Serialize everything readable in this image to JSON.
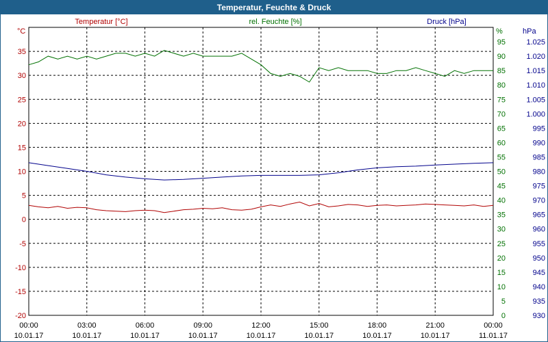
{
  "window": {
    "title": "Temperatur, Feuchte & Druck"
  },
  "chart_data": {
    "type": "line",
    "title": "Temperatur, Feuchte & Druck",
    "grid": true,
    "colors": {
      "temperature": "#b00000",
      "humidity": "#007000",
      "pressure": "#00008b",
      "titlebar": "#1f5f8b"
    },
    "x": {
      "tick_times": [
        "00:00",
        "03:00",
        "06:00",
        "09:00",
        "12:00",
        "15:00",
        "18:00",
        "21:00",
        "00:00"
      ],
      "tick_dates": [
        "10.01.17",
        "10.01.17",
        "10.01.17",
        "10.01.17",
        "10.01.17",
        "10.01.17",
        "10.01.17",
        "10.01.17",
        "11.01.17"
      ],
      "range_hours": [
        0,
        24
      ]
    },
    "axes": {
      "temperature": {
        "label": "Temperatur [°C]",
        "unit": "°C",
        "range": [
          -20,
          40
        ],
        "ticks": [
          35,
          30,
          25,
          20,
          15,
          10,
          5,
          0,
          -5,
          -10,
          -15,
          -20
        ],
        "tick_labels": [
          "35",
          "30",
          "25",
          "20",
          "15",
          "10",
          "5",
          "0",
          "-5",
          "-10",
          "-15",
          "-20"
        ]
      },
      "humidity": {
        "label": "rel. Feuchte [%]",
        "unit": "%",
        "range": [
          0,
          100
        ],
        "ticks": [
          95,
          90,
          85,
          80,
          75,
          70,
          65,
          60,
          55,
          50,
          45,
          40,
          35,
          30,
          25,
          20,
          15,
          10,
          5,
          0
        ],
        "tick_labels": [
          "95",
          "90",
          "85",
          "80",
          "75",
          "70",
          "65",
          "60",
          "55",
          "50",
          "45",
          "40",
          "35",
          "30",
          "25",
          "20",
          "15",
          "10",
          "5",
          "0"
        ]
      },
      "pressure": {
        "label": "Druck [hPa]",
        "unit": "hPa",
        "range": [
          930,
          1030
        ],
        "ticks": [
          1025,
          1020,
          1015,
          1010,
          1005,
          1000,
          995,
          990,
          985,
          980,
          975,
          970,
          965,
          960,
          955,
          950,
          945,
          940,
          935,
          930
        ],
        "tick_labels": [
          "1.025",
          "1.020",
          "1.015",
          "1.010",
          "1.005",
          "1.000",
          "995",
          "990",
          "985",
          "980",
          "975",
          "970",
          "965",
          "960",
          "955",
          "950",
          "945",
          "940",
          "935",
          "930"
        ]
      }
    },
    "series": [
      {
        "name": "Temperatur [°C]",
        "axis": "temperature",
        "color": "#b00000",
        "x": [
          0,
          0.5,
          1,
          1.5,
          2,
          2.5,
          3,
          3.5,
          4,
          4.5,
          5,
          5.5,
          6,
          6.5,
          7,
          7.5,
          8,
          8.5,
          9,
          9.5,
          10,
          10.5,
          11,
          11.5,
          12,
          12.5,
          13,
          13.5,
          14,
          14.5,
          15,
          15.5,
          16,
          16.5,
          17,
          17.5,
          18,
          18.5,
          19,
          19.5,
          20,
          20.5,
          21,
          21.5,
          22,
          22.5,
          23,
          23.5,
          24
        ],
        "y": [
          2.9,
          2.6,
          2.4,
          2.7,
          2.3,
          2.5,
          2.4,
          2.0,
          1.8,
          1.7,
          1.6,
          1.8,
          1.9,
          1.8,
          1.4,
          1.7,
          2.0,
          2.1,
          2.3,
          2.2,
          2.4,
          2.0,
          1.9,
          2.1,
          2.6,
          3.0,
          2.7,
          3.2,
          3.6,
          2.8,
          3.3,
          2.6,
          2.8,
          3.1,
          3.0,
          2.7,
          2.9,
          3.0,
          2.8,
          2.9,
          3.0,
          3.2,
          3.1,
          3.0,
          2.9,
          2.8,
          3.0,
          2.7,
          2.9
        ]
      },
      {
        "name": "rel. Feuchte [%]",
        "axis": "humidity",
        "color": "#007000",
        "x": [
          0,
          0.5,
          1,
          1.5,
          2,
          2.5,
          3,
          3.5,
          4,
          4.5,
          5,
          5.5,
          6,
          6.5,
          7,
          7.5,
          8,
          8.5,
          9,
          9.5,
          10,
          10.5,
          11,
          11.5,
          12,
          12.5,
          13,
          13.5,
          14,
          14.5,
          15,
          15.5,
          16,
          16.5,
          17,
          17.5,
          18,
          18.5,
          19,
          19.5,
          20,
          20.5,
          21,
          21.5,
          22,
          22.5,
          23,
          23.5,
          24
        ],
        "y": [
          87,
          88,
          90,
          89,
          90,
          89,
          90,
          89,
          90,
          91,
          91,
          90,
          91,
          90,
          92,
          91,
          90,
          91,
          90,
          90,
          90,
          90,
          91,
          89,
          87,
          84,
          83,
          84,
          83,
          81,
          86,
          85,
          86,
          85,
          85,
          85,
          84,
          84,
          85,
          85,
          86,
          85,
          84,
          83,
          85,
          84,
          85,
          85,
          85
        ]
      },
      {
        "name": "Druck [hPa]",
        "axis": "pressure",
        "color": "#00008b",
        "x": [
          0,
          1,
          2,
          3,
          4,
          5,
          6,
          7,
          8,
          9,
          10,
          11,
          12,
          13,
          14,
          15,
          16,
          17,
          18,
          19,
          20,
          21,
          22,
          23,
          24
        ],
        "y": [
          983.0,
          982.0,
          981.0,
          980.0,
          978.8,
          978.0,
          977.4,
          977.0,
          977.2,
          977.6,
          978.0,
          978.4,
          978.6,
          978.6,
          978.6,
          978.8,
          979.5,
          980.5,
          981.2,
          981.6,
          981.8,
          982.2,
          982.5,
          982.8,
          983.0
        ]
      }
    ]
  }
}
